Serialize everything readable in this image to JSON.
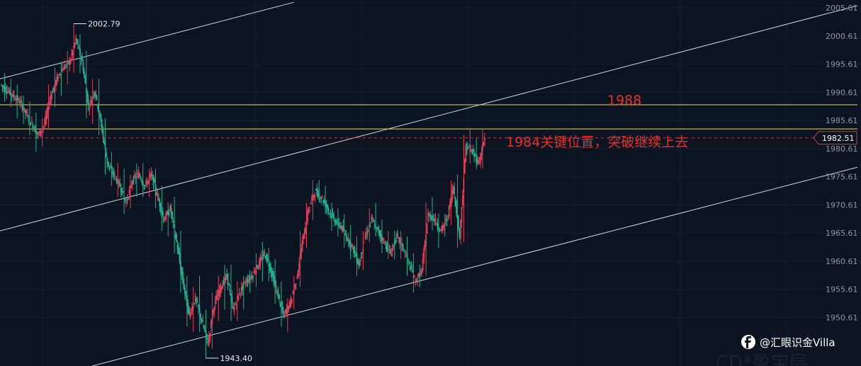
{
  "colors": {
    "background": "#0b1420",
    "grid": "#16202d",
    "up": "#e0405a",
    "down": "#23b08c",
    "channel": "#d4d8de",
    "level": "#e8d860",
    "annotation": "#e8302a",
    "current_price": "#d23a4a",
    "axis_text": "#8a96a8"
  },
  "chart_data": {
    "type": "candlestick",
    "title": "",
    "xlabel": "",
    "ylabel": "",
    "ylim": [
      1942.0,
      2007.0
    ],
    "grid": true,
    "y_ticks": [
      "2005.61",
      "2000.61",
      "1995.61",
      "1990.61",
      "1985.61",
      "1980.61",
      "1975.61",
      "1970.61",
      "1965.61",
      "1960.61",
      "1955.61",
      "1950.61"
    ],
    "current_price": "1982.51",
    "high_label": "2002.79",
    "low_label": "1943.40",
    "candles_note": "",
    "candles": [
      [
        1992,
        1994,
        1989,
        1991
      ],
      [
        1991,
        1993,
        1988,
        1990
      ],
      [
        1990,
        1992,
        1986,
        1989
      ],
      [
        1989,
        1990,
        1985,
        1987
      ],
      [
        1987,
        1989,
        1983,
        1985
      ],
      [
        1985,
        1987,
        1980,
        1983
      ],
      [
        1983,
        1986,
        1981,
        1985
      ],
      [
        1985,
        1992,
        1984,
        1990
      ],
      [
        1990,
        1995,
        1988,
        1993
      ],
      [
        1993,
        1996,
        1990,
        1995
      ],
      [
        1995,
        1998,
        1992,
        1996
      ],
      [
        1996,
        2002.79,
        1994,
        2000
      ],
      [
        2000,
        2001,
        1994,
        1996
      ],
      [
        1996,
        1998,
        1986,
        1988
      ],
      [
        1988,
        1993,
        1985,
        1991
      ],
      [
        1991,
        1993,
        1983,
        1985
      ],
      [
        1985,
        1986,
        1976,
        1978
      ],
      [
        1978,
        1980,
        1974,
        1976
      ],
      [
        1976,
        1978,
        1972,
        1974
      ],
      [
        1974,
        1977,
        1969,
        1971
      ],
      [
        1971,
        1976,
        1970,
        1975
      ],
      [
        1975,
        1978,
        1972,
        1976
      ],
      [
        1976,
        1978,
        1972,
        1974
      ],
      [
        1974,
        1977,
        1972,
        1976
      ],
      [
        1976,
        1977,
        1970,
        1972
      ],
      [
        1972,
        1974,
        1966,
        1968
      ],
      [
        1968,
        1971,
        1965,
        1970
      ],
      [
        1970,
        1972,
        1962,
        1964
      ],
      [
        1964,
        1966,
        1955,
        1957
      ],
      [
        1957,
        1958,
        1949,
        1951
      ],
      [
        1951,
        1956,
        1948,
        1954
      ],
      [
        1954,
        1958,
        1948,
        1950
      ],
      [
        1950,
        1952,
        1943.4,
        1946
      ],
      [
        1946,
        1955,
        1945,
        1953
      ],
      [
        1953,
        1958,
        1950,
        1956
      ],
      [
        1956,
        1960,
        1952,
        1958
      ],
      [
        1958,
        1960,
        1950,
        1952
      ],
      [
        1952,
        1957,
        1950,
        1955
      ],
      [
        1955,
        1958,
        1952,
        1957
      ],
      [
        1957,
        1959,
        1955,
        1958
      ],
      [
        1958,
        1962,
        1956,
        1960
      ],
      [
        1960,
        1964,
        1957,
        1962
      ],
      [
        1962,
        1963,
        1957,
        1959
      ],
      [
        1959,
        1961,
        1953,
        1955
      ],
      [
        1955,
        1957,
        1949,
        1951
      ],
      [
        1951,
        1954,
        1948,
        1953
      ],
      [
        1953,
        1958,
        1952,
        1957
      ],
      [
        1957,
        1966,
        1956,
        1964
      ],
      [
        1964,
        1971,
        1963,
        1970
      ],
      [
        1970,
        1975,
        1968,
        1973
      ],
      [
        1973,
        1975,
        1971,
        1972
      ],
      [
        1972,
        1974,
        1969,
        1970
      ],
      [
        1970,
        1971,
        1966,
        1968
      ],
      [
        1968,
        1970,
        1965,
        1967
      ],
      [
        1967,
        1969,
        1963,
        1965
      ],
      [
        1965,
        1967,
        1961,
        1963
      ],
      [
        1963,
        1965,
        1958,
        1960
      ],
      [
        1960,
        1966,
        1959,
        1965
      ],
      [
        1965,
        1970,
        1964,
        1968
      ],
      [
        1968,
        1971,
        1965,
        1966
      ],
      [
        1966,
        1968,
        1962,
        1964
      ],
      [
        1964,
        1966,
        1961,
        1962
      ],
      [
        1962,
        1966,
        1961,
        1965
      ],
      [
        1965,
        1966,
        1961,
        1963
      ],
      [
        1963,
        1965,
        1958,
        1960
      ],
      [
        1960,
        1962,
        1955,
        1957
      ],
      [
        1957,
        1960,
        1956,
        1959
      ],
      [
        1959,
        1971,
        1958,
        1969
      ],
      [
        1969,
        1972,
        1966,
        1968
      ],
      [
        1968,
        1969,
        1963,
        1966
      ],
      [
        1966,
        1969,
        1965,
        1968
      ],
      [
        1968,
        1975,
        1967,
        1974
      ],
      [
        1974,
        1976,
        1963,
        1965
      ],
      [
        1965,
        1983,
        1964,
        1981
      ],
      [
        1981,
        1984,
        1978,
        1980
      ],
      [
        1980,
        1982.5,
        1977,
        1978
      ],
      [
        1978,
        1984,
        1977,
        1982.51
      ]
    ]
  },
  "channel_lines": [
    {
      "name": "upper-channel-line",
      "points": [
        [
          0,
          1993
        ],
        [
          415,
          2006.6
        ]
      ]
    },
    {
      "name": "middle-channel-line",
      "points": [
        [
          0,
          1966
        ],
        [
          1210,
          2006
        ]
      ]
    },
    {
      "name": "lower-channel-line",
      "points": [
        [
          130,
          1942
        ],
        [
          1210,
          1977.3
        ]
      ]
    }
  ],
  "levels": [
    {
      "name": "level-1988-line",
      "value": 1988.4
    },
    {
      "name": "level-1984-line",
      "value": 1984.1
    }
  ],
  "annotations": {
    "level_1988": "1988",
    "level_1984": "1984关键位置，突破继续上去"
  },
  "watermark": {
    "handle": "@汇眼识金Villa",
    "icon": "weibo-logo-icon",
    "faded_text": "CD*盈宝层"
  }
}
